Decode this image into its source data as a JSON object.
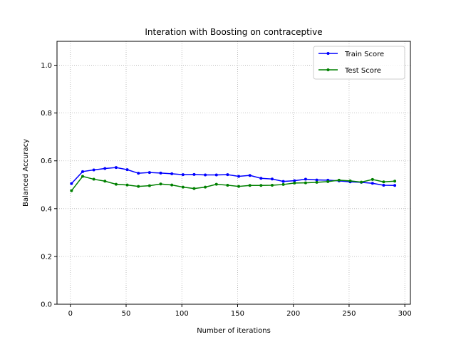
{
  "chart_data": {
    "type": "line",
    "title": "Interation with Boosting on contraceptive",
    "xlabel": "Number of iterations",
    "ylabel": "Balanced Accuracy",
    "xlim": [
      -12,
      305
    ],
    "ylim": [
      0,
      1.1
    ],
    "xticks": [
      0,
      50,
      100,
      150,
      200,
      250,
      300
    ],
    "yticks": [
      0.0,
      0.2,
      0.4,
      0.6,
      0.8,
      1.0
    ],
    "grid": true,
    "legend_position": "upper right",
    "x": [
      1,
      11,
      21,
      31,
      41,
      51,
      61,
      71,
      81,
      91,
      101,
      111,
      121,
      131,
      141,
      151,
      161,
      171,
      181,
      191,
      201,
      211,
      221,
      231,
      241,
      251,
      261,
      271,
      281,
      291
    ],
    "series": [
      {
        "name": "Train Score",
        "color": "#0000ff",
        "values": [
          0.505,
          0.555,
          0.562,
          0.568,
          0.572,
          0.563,
          0.548,
          0.551,
          0.549,
          0.546,
          0.542,
          0.543,
          0.541,
          0.541,
          0.542,
          0.535,
          0.539,
          0.527,
          0.524,
          0.514,
          0.517,
          0.523,
          0.52,
          0.519,
          0.516,
          0.512,
          0.51,
          0.506,
          0.498,
          0.497
        ]
      },
      {
        "name": "Test Score",
        "color": "#008000",
        "values": [
          0.475,
          0.535,
          0.523,
          0.515,
          0.502,
          0.499,
          0.493,
          0.496,
          0.503,
          0.499,
          0.49,
          0.484,
          0.49,
          0.502,
          0.498,
          0.493,
          0.497,
          0.497,
          0.498,
          0.501,
          0.507,
          0.508,
          0.51,
          0.513,
          0.519,
          0.516,
          0.511,
          0.522,
          0.512,
          0.515
        ]
      }
    ]
  }
}
